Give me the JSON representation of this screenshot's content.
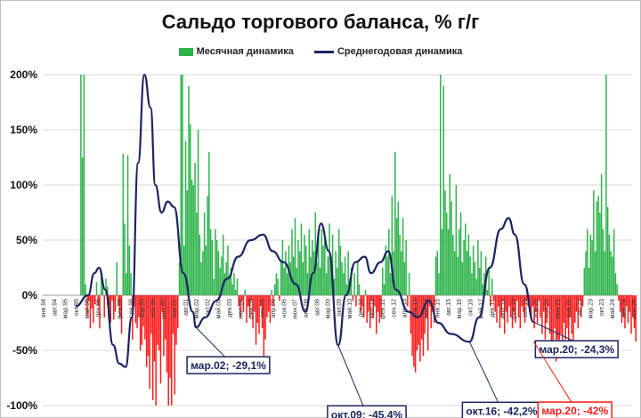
{
  "chart_data": {
    "type": "bar+line",
    "title": "Сальдо торгового баланса, % г/г",
    "ylim": [
      -100,
      200
    ],
    "yticks": [
      "-100%",
      "-50%",
      "0%",
      "50%",
      "100%",
      "150%",
      "200%"
    ],
    "ytick_values": [
      -100,
      -50,
      0,
      50,
      100,
      150,
      200
    ],
    "grid": "horizontal",
    "legend_position": "top",
    "x_start": "янв.94",
    "x_end": "июн.25",
    "x_tick_labels": [
      "янв.94",
      "авг.94",
      "мар.95",
      "окт.95",
      "май.96",
      "дек.96",
      "июл.97",
      "фев.98",
      "сен.98",
      "апр.99",
      "ноя.99",
      "июн.00",
      "янв.01",
      "авг.01",
      "мар.02",
      "окт.02",
      "май.03",
      "дек.03",
      "июл.04",
      "фев.05",
      "сен.05",
      "апр.06",
      "ноя.06",
      "июн.07",
      "янв.08",
      "авг.08",
      "мар.09",
      "окт.09",
      "май.10",
      "дек.10",
      "июл.11",
      "фев.12",
      "сен.12",
      "апр.13",
      "ноя.13",
      "июн.14",
      "янв.15",
      "авг.15",
      "мар.16",
      "окт.16",
      "май.17",
      "дек.17",
      "июл.18",
      "фев.19",
      "сен.19",
      "апр.20",
      "ноя.20",
      "июн.21",
      "янв.22",
      "авг.22",
      "мар.23",
      "окт.23",
      "май.24",
      "дек.24",
      "июл.25"
    ],
    "colors": {
      "positive": "#2db34a",
      "negative": "#ff1a1a",
      "line": "#1a2560",
      "grid": "#d9d9d9"
    },
    "series": [
      {
        "name": "Месячная динамика",
        "type": "bar",
        "monthly_pct": [
          null,
          null,
          null,
          null,
          null,
          null,
          null,
          null,
          null,
          null,
          null,
          null,
          null,
          null,
          null,
          null,
          null,
          null,
          null,
          null,
          null,
          null,
          null,
          null,
          200,
          125,
          200,
          10,
          -18,
          -5,
          -30,
          -12,
          -25,
          -8,
          12,
          -10,
          -30,
          22,
          10,
          -20,
          15,
          8,
          -12,
          -25,
          -5,
          -22,
          -15,
          30,
          -10,
          -20,
          -35,
          128,
          65,
          20,
          127,
          45,
          20,
          -40,
          -10,
          -25,
          -30,
          -20,
          -50,
          -45,
          -28,
          -40,
          -65,
          -55,
          -85,
          -35,
          -95,
          -60,
          -100,
          -45,
          -50,
          -80,
          -15,
          -55,
          -40,
          -70,
          -100,
          -75,
          -100,
          -35,
          -90,
          -45,
          -30,
          30,
          200,
          200,
          45,
          140,
          95,
          190,
          155,
          105,
          100,
          120,
          75,
          150,
          55,
          30,
          40,
          75,
          45,
          90,
          130,
          60,
          50,
          15,
          60,
          50,
          40,
          25,
          35,
          55,
          20,
          30,
          45,
          15,
          25,
          10,
          20,
          5,
          15,
          -10,
          -20,
          -5,
          -15,
          5,
          -25,
          -10,
          -20,
          -5,
          -30,
          -15,
          -45,
          -25,
          -35,
          -10,
          -30,
          -55,
          -40,
          -20,
          -15,
          -25,
          5,
          -10,
          10,
          20,
          15,
          -5,
          30,
          50,
          25,
          40,
          20,
          45,
          30,
          60,
          35,
          70,
          25,
          50,
          40,
          65,
          30,
          55,
          45,
          20,
          60,
          35,
          50,
          40,
          75,
          30,
          55,
          25,
          60,
          45,
          50,
          20,
          35,
          65,
          30,
          55,
          15,
          40,
          25,
          60,
          45,
          30,
          20,
          35,
          10,
          40,
          15,
          25,
          -5,
          20,
          -10,
          30,
          10,
          -15,
          -10,
          -20,
          5,
          -25,
          -15,
          -30,
          -5,
          -20,
          -10,
          -35,
          -15,
          -25,
          -20,
          25,
          10,
          45,
          35,
          60,
          20,
          90,
          40,
          130,
          70,
          85,
          55,
          40,
          70,
          30,
          50,
          -10,
          20,
          -35,
          -55,
          -65,
          -70,
          -50,
          -45,
          -60,
          -40,
          -55,
          -35,
          -20,
          -50,
          -10,
          -30,
          -15,
          -25,
          35,
          40,
          20,
          200,
          60,
          190,
          95,
          75,
          60,
          110,
          85,
          55,
          40,
          100,
          35,
          60,
          75,
          30,
          50,
          65,
          40,
          55,
          35,
          20,
          45,
          30,
          15,
          50,
          25,
          40,
          10,
          20,
          35,
          5,
          25,
          -10,
          15,
          -5,
          -15,
          -25,
          -10,
          -30,
          -20,
          -5,
          -35,
          -15,
          -25,
          -10,
          -20,
          -30,
          -15,
          -25,
          -5,
          -20,
          -30,
          -10,
          -15,
          -25,
          -5,
          -10,
          -15,
          -20,
          -10,
          -30,
          -15,
          -25,
          -5,
          -20,
          -35,
          -15,
          -40,
          -25,
          -10,
          -35,
          -55,
          -45,
          -30,
          -60,
          -40,
          -55,
          -35,
          -45,
          -25,
          -40,
          -30,
          -50,
          -20,
          -35,
          -45,
          -25,
          -15,
          -30,
          -5,
          -20,
          -10,
          25,
          40,
          60,
          25,
          55,
          50,
          95,
          40,
          85,
          90,
          75,
          110,
          60,
          40,
          200,
          80,
          55,
          40,
          35,
          60,
          20,
          10,
          -5,
          -15,
          -25,
          -20,
          -30,
          -10,
          -25,
          -15,
          -35,
          -20,
          -30,
          -42,
          null,
          null,
          null,
          null,
          null,
          null,
          null,
          null,
          null,
          null,
          null,
          null,
          null,
          null,
          null,
          null,
          null,
          null,
          null,
          null,
          null,
          null,
          null,
          null,
          null,
          null,
          null,
          null,
          null,
          null,
          null,
          null,
          null,
          null,
          null,
          null,
          null,
          null,
          null,
          null,
          null,
          null,
          null,
          null,
          null,
          null,
          null,
          null,
          null,
          null,
          null,
          null,
          null,
          null,
          null,
          null,
          null,
          null,
          null,
          null,
          null,
          null,
          null,
          null,
          null,
          null,
          null,
          null,
          null,
          null,
          null,
          null,
          null,
          null,
          null,
          null,
          null,
          null,
          null,
          null,
          null,
          null,
          null,
          null,
          null,
          null,
          null,
          null
        ]
      },
      {
        "name": "Среднегодовая динамика",
        "type": "line",
        "points": [
          [
            "окт.95",
            -10
          ],
          [
            "июн.96",
            0
          ],
          [
            "окт.96",
            20
          ],
          [
            "янв.97",
            25
          ],
          [
            "май.97",
            5
          ],
          [
            "окт.97",
            -45
          ],
          [
            "фев.98",
            -62
          ],
          [
            "июн.98",
            -65
          ],
          [
            "окт.98",
            -20
          ],
          [
            "фев.99",
            120
          ],
          [
            "июн.99",
            200
          ],
          [
            "окт.99",
            170
          ],
          [
            "янв.00",
            100
          ],
          [
            "май.00",
            75
          ],
          [
            "сен.00",
            85
          ],
          [
            "янв.01",
            80
          ],
          [
            "июл.01",
            20
          ],
          [
            "янв.02",
            -15
          ],
          [
            "мар.02",
            -29.1
          ],
          [
            "сен.02",
            -20
          ],
          [
            "апр.03",
            -5
          ],
          [
            "ноя.03",
            15
          ],
          [
            "июн.04",
            35
          ],
          [
            "фев.05",
            50
          ],
          [
            "окт.05",
            55
          ],
          [
            "апр.06",
            40
          ],
          [
            "ноя.06",
            30
          ],
          [
            "июл.07",
            10
          ],
          [
            "янв.08",
            -15
          ],
          [
            "июн.08",
            20
          ],
          [
            "ноя.08",
            65
          ],
          [
            "апр.09",
            40
          ],
          [
            "окт.09",
            -45.4
          ],
          [
            "мар.10",
            0
          ],
          [
            "сен.10",
            30
          ],
          [
            "мар.11",
            35
          ],
          [
            "июл.11",
            20
          ],
          [
            "янв.12",
            30
          ],
          [
            "июн.12",
            40
          ],
          [
            "ноя.12",
            5
          ],
          [
            "июл.13",
            -15
          ],
          [
            "янв.14",
            -20
          ],
          [
            "авг.14",
            -5
          ],
          [
            "фев.15",
            -25
          ],
          [
            "окт.15",
            -35
          ],
          [
            "окт.16",
            -42.2
          ],
          [
            "апр.17",
            -20
          ],
          [
            "ноя.17",
            25
          ],
          [
            "июн.18",
            60
          ],
          [
            "ноя.18",
            70
          ],
          [
            "мар.19",
            55
          ],
          [
            "сен.19",
            10
          ],
          [
            "мар.20",
            -24.3
          ]
        ]
      }
    ],
    "annotations": [
      {
        "label": "мар.02; -29,1%",
        "x": "мар.02",
        "y": -29.1,
        "color": "#1a2560"
      },
      {
        "label": "окт.09; -45,4%",
        "x": "окт.09",
        "y": -45.4,
        "color": "#1a2560"
      },
      {
        "label": "окт.16; -42,2%",
        "x": "окт.16",
        "y": -42.2,
        "color": "#1a2560"
      },
      {
        "label": "мар.20; -24,3%",
        "x": "мар.20",
        "y": -24.3,
        "color": "#1a2560"
      },
      {
        "label": "мар.20; -42%",
        "x": "мар.20",
        "y": -42,
        "color": "#ff1a1a"
      }
    ]
  }
}
